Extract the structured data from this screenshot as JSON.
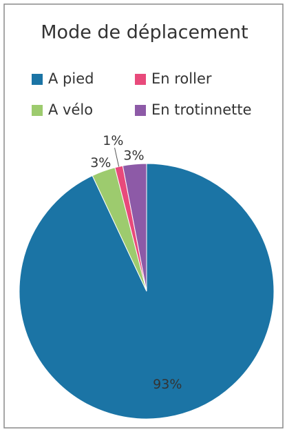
{
  "chart_data": {
    "type": "pie",
    "title": "Mode de déplacement",
    "series": [
      {
        "name": "A pied",
        "color": "#1b74a5",
        "values": [
          93
        ],
        "value_labels": [
          "93%"
        ]
      },
      {
        "name": "A vélo",
        "color": "#9dcb6e",
        "values": [
          3
        ],
        "value_labels": [
          "3%"
        ]
      },
      {
        "name": "En roller",
        "color": "#e84a7b",
        "values": [
          1
        ],
        "value_labels": [
          "1%"
        ]
      },
      {
        "name": "En trotinnette",
        "color": "#8d5aa7",
        "values": [
          3
        ],
        "value_labels": [
          "3%"
        ]
      }
    ],
    "legend": "top"
  }
}
